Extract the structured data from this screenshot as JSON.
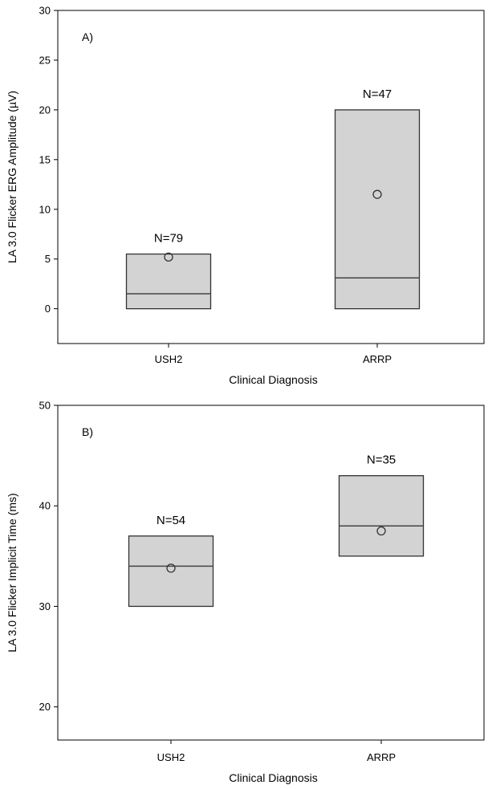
{
  "chart_data": [
    {
      "type": "box",
      "panel_label": "A)",
      "xlabel": "Clinical Diagnosis",
      "ylabel": "LA 3.0 Flicker ERG Amplitude (µV)",
      "ylim": [
        -3.5,
        30
      ],
      "yticks": [
        0,
        5,
        10,
        15,
        20,
        25,
        30
      ],
      "categories": [
        "USH2",
        "ARRP"
      ],
      "boxes": [
        {
          "category": "USH2",
          "q1": 0,
          "median": 1.5,
          "q3": 5.5,
          "mean": 5.2,
          "n_label": "N=79"
        },
        {
          "category": "ARRP",
          "q1": 0,
          "median": 3.1,
          "q3": 20,
          "mean": 11.5,
          "n_label": "N=47"
        }
      ],
      "box_color": "#d3d3d3"
    },
    {
      "type": "box",
      "panel_label": "B)",
      "xlabel": "Clinical Diagnosis",
      "ylabel": "LA 3.0 Flicker Implicit Time (ms)",
      "ylim": [
        16.7,
        50
      ],
      "yticks": [
        20,
        30,
        40,
        50
      ],
      "categories": [
        "USH2",
        "ARRP"
      ],
      "boxes": [
        {
          "category": "USH2",
          "q1": 30,
          "median": 34,
          "q3": 37,
          "mean": 33.8,
          "n_label": "N=54"
        },
        {
          "category": "ARRP",
          "q1": 35,
          "median": 38,
          "q3": 43,
          "mean": 37.5,
          "n_label": "N=35"
        }
      ],
      "box_color": "#d3d3d3"
    }
  ]
}
